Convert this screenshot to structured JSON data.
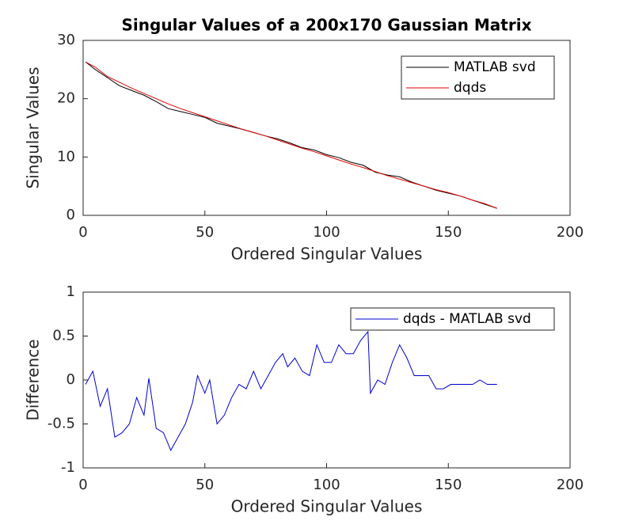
{
  "chart_data": [
    {
      "type": "line",
      "title": "Singular Values of a 200x170 Gaussian Matrix",
      "xlabel": "Ordered Singular Values",
      "ylabel": "Singular Values",
      "x": [
        1,
        5,
        10,
        15,
        20,
        25,
        30,
        35,
        40,
        45,
        50,
        55,
        60,
        65,
        70,
        75,
        80,
        85,
        90,
        95,
        100,
        105,
        110,
        115,
        120,
        125,
        130,
        135,
        140,
        145,
        150,
        155,
        160,
        165,
        170
      ],
      "series": [
        {
          "name": "MATLAB svd",
          "color": "#000000",
          "values": [
            26.3,
            25.0,
            23.6,
            22.2,
            21.4,
            20.6,
            19.5,
            18.3,
            17.8,
            17.3,
            16.8,
            15.8,
            15.3,
            14.8,
            14.2,
            13.6,
            13.1,
            12.4,
            11.6,
            11.2,
            10.4,
            9.9,
            9.1,
            8.6,
            7.4,
            6.9,
            6.6,
            5.7,
            5.0,
            4.3,
            3.8,
            3.3,
            2.6,
            1.9,
            1.2
          ]
        },
        {
          "name": "dqds",
          "color": "#e00000",
          "values": [
            26.3,
            25.4,
            23.8,
            22.8,
            21.8,
            20.9,
            20.0,
            19.1,
            18.3,
            17.6,
            16.9,
            16.2,
            15.5,
            14.8,
            14.2,
            13.6,
            12.9,
            12.2,
            11.5,
            10.9,
            10.2,
            9.5,
            8.8,
            8.2,
            7.5,
            6.8,
            6.2,
            5.6,
            5.0,
            4.4,
            3.9,
            3.3,
            2.6,
            2.0,
            1.2
          ]
        }
      ],
      "xlim": [
        0,
        200
      ],
      "xticks": [
        0,
        50,
        100,
        150,
        200
      ],
      "ylim": [
        0,
        30
      ],
      "yticks": [
        0,
        10,
        20,
        30
      ],
      "legend": "upper right",
      "grid": false
    },
    {
      "type": "line",
      "xlabel": "Ordered Singular Values",
      "ylabel": "Difference",
      "x": [
        1,
        4,
        7,
        10,
        13,
        16,
        19,
        22,
        25,
        27,
        30,
        33,
        36,
        39,
        42,
        45,
        47,
        50,
        52,
        55,
        58,
        61,
        64,
        67,
        70,
        73,
        76,
        79,
        82,
        84,
        87,
        90,
        93,
        96,
        99,
        102,
        105,
        108,
        111,
        114,
        117,
        118,
        121,
        124,
        127,
        130,
        133,
        136,
        139,
        142,
        145,
        148,
        151,
        154,
        157,
        160,
        163,
        166,
        170
      ],
      "series": [
        {
          "name": "dqds - MATLAB svd",
          "color": "#0000d0",
          "values": [
            -0.05,
            0.1,
            -0.3,
            -0.1,
            -0.65,
            -0.6,
            -0.5,
            -0.2,
            -0.4,
            0.02,
            -0.55,
            -0.6,
            -0.8,
            -0.65,
            -0.5,
            -0.25,
            0.05,
            -0.15,
            0.0,
            -0.5,
            -0.4,
            -0.2,
            -0.05,
            -0.1,
            0.1,
            -0.1,
            0.05,
            0.2,
            0.3,
            0.15,
            0.25,
            0.1,
            0.05,
            0.4,
            0.2,
            0.2,
            0.4,
            0.3,
            0.3,
            0.45,
            0.55,
            -0.15,
            0.0,
            -0.05,
            0.2,
            0.4,
            0.25,
            0.05,
            0.05,
            0.05,
            -0.1,
            -0.1,
            -0.05,
            -0.05,
            -0.05,
            -0.05,
            0,
            -0.05,
            -0.05
          ]
        }
      ],
      "xlim": [
        0,
        200
      ],
      "xticks": [
        0,
        50,
        100,
        150,
        200
      ],
      "ylim": [
        -1,
        1
      ],
      "yticks": [
        -1,
        -0.5,
        0,
        0.5,
        1
      ],
      "legend": "upper right",
      "grid": false
    }
  ]
}
